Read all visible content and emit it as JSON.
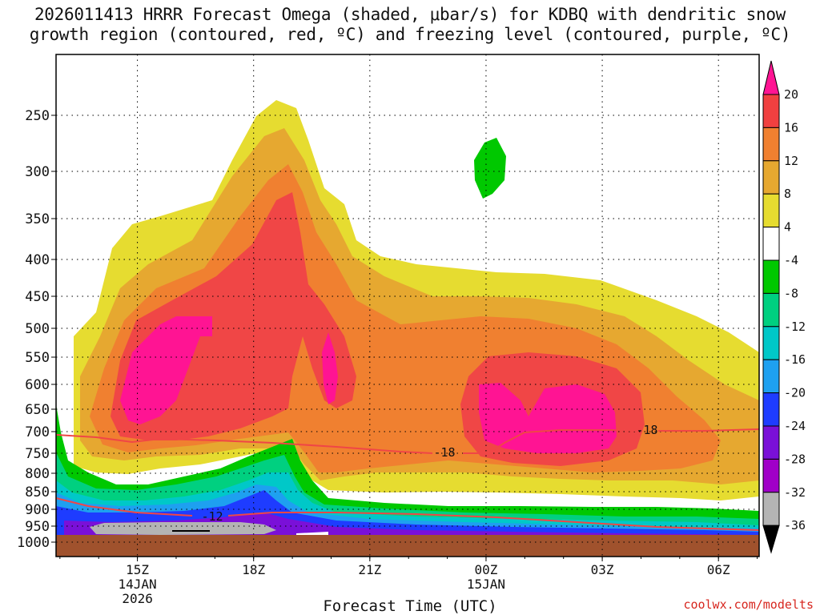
{
  "title_line1": "2026011413 HRRR Forecast Omega (shaded, μbar/s) for KDBQ with dendritic snow",
  "title_line2": "growth region (contoured, red, ºC) and freezing level (contoured, purple, ºC)",
  "xaxis_title": "Forecast Time (UTC)",
  "credit": "coolwx.com/modelts",
  "chart_data": {
    "type": "heatmap",
    "y_levels_hPa": [
      250,
      300,
      350,
      400,
      450,
      500,
      550,
      600,
      650,
      700,
      750,
      800,
      850,
      900,
      950,
      1000
    ],
    "y_tick_labels": [
      "250",
      "300",
      "350",
      "400",
      "450",
      "500",
      "550",
      "600",
      "650",
      "700",
      "750",
      "800",
      "850",
      "900",
      "950",
      "1000"
    ],
    "x_ticks": [
      {
        "label": "15Z",
        "sub1": "14JAN",
        "sub2": "2026",
        "hour": 15
      },
      {
        "label": "18Z",
        "sub1": "",
        "sub2": "",
        "hour": 18
      },
      {
        "label": "21Z",
        "sub1": "",
        "sub2": "",
        "hour": 21
      },
      {
        "label": "00Z",
        "sub1": "15JAN",
        "sub2": "",
        "hour": 24
      },
      {
        "label": "03Z",
        "sub1": "",
        "sub2": "",
        "hour": 27
      },
      {
        "label": "06Z",
        "sub1": "",
        "sub2": "",
        "hour": 30
      }
    ],
    "x_range_hours": [
      13,
      31
    ],
    "colorbar": {
      "labels": [
        "20",
        "16",
        "12",
        "8",
        "4",
        "-4",
        "-8",
        "-12",
        "-16",
        "-20",
        "-24",
        "-28",
        "-32",
        "-36"
      ],
      "colors": [
        "#ff1493",
        "#f04040",
        "#f08030",
        "#e6a830",
        "#e6dc30",
        "#ffffff",
        "#00c800",
        "#00d080",
        "#00c8c8",
        "#1ea0f0",
        "#1e3cff",
        "#7a10d8",
        "#a000c8",
        "#b4b4b4",
        "#000000"
      ]
    },
    "contours": [
      {
        "name": "dendritic-snow-growth-upper",
        "label": "-18",
        "units": "C",
        "color": "#f04646"
      },
      {
        "name": "dendritic-snow-growth-lower",
        "label": "-12",
        "units": "C",
        "color": "#f04646"
      }
    ]
  }
}
